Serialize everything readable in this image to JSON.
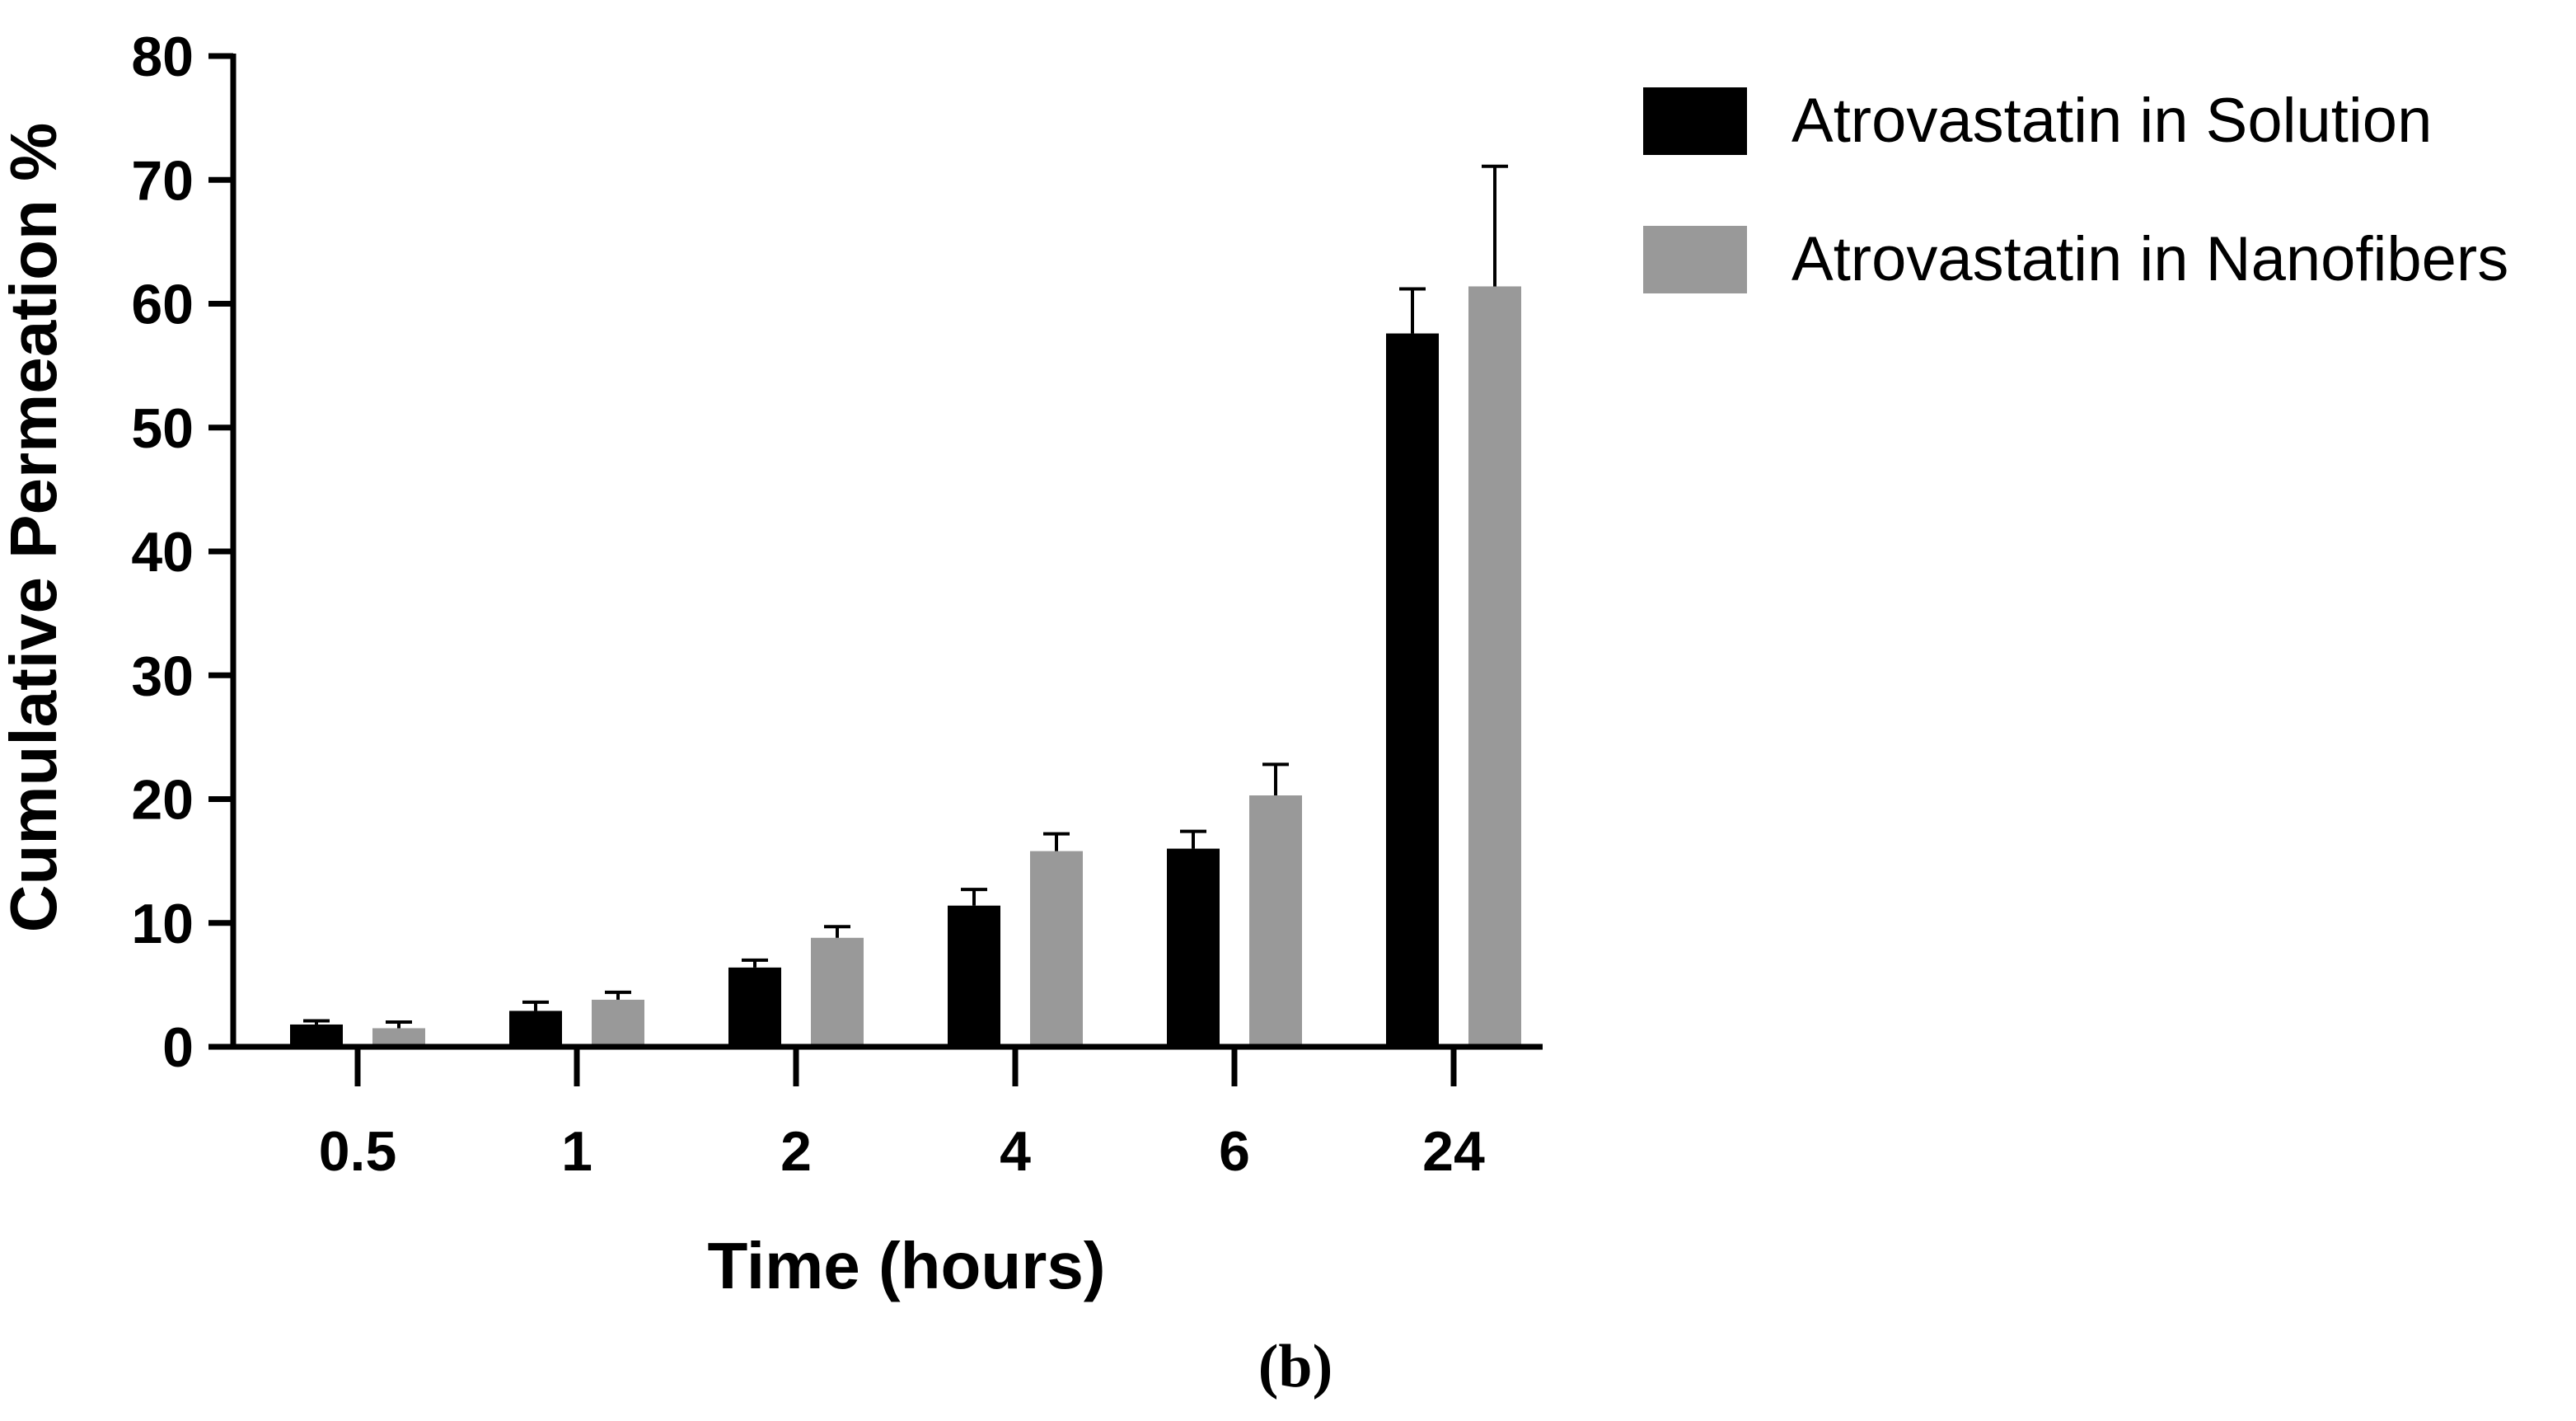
{
  "chart_data": {
    "type": "bar",
    "title": "",
    "xlabel": "Time (hours)",
    "ylabel": "Cumulative Permeation %",
    "panel_label": "(b)",
    "categories": [
      "0.5",
      "1",
      "2",
      "4",
      "6",
      "24"
    ],
    "ylim": [
      0,
      80
    ],
    "yticks": [
      0,
      10,
      20,
      30,
      40,
      50,
      60,
      70,
      80
    ],
    "grid": false,
    "legend_position": "top-right",
    "series": [
      {
        "name": "Atrovastatin in Solution",
        "color": "#000000",
        "values": [
          1.8,
          2.9,
          6.4,
          11.4,
          16.0,
          57.6
        ],
        "errors": [
          0.3,
          0.7,
          0.6,
          1.3,
          1.4,
          3.6
        ]
      },
      {
        "name": "Atrovastatin in Nanofibers",
        "color": "#999999",
        "values": [
          1.5,
          3.8,
          8.8,
          15.8,
          20.3,
          61.4
        ],
        "errors": [
          0.5,
          0.6,
          0.9,
          1.4,
          2.5,
          9.7
        ]
      }
    ]
  }
}
